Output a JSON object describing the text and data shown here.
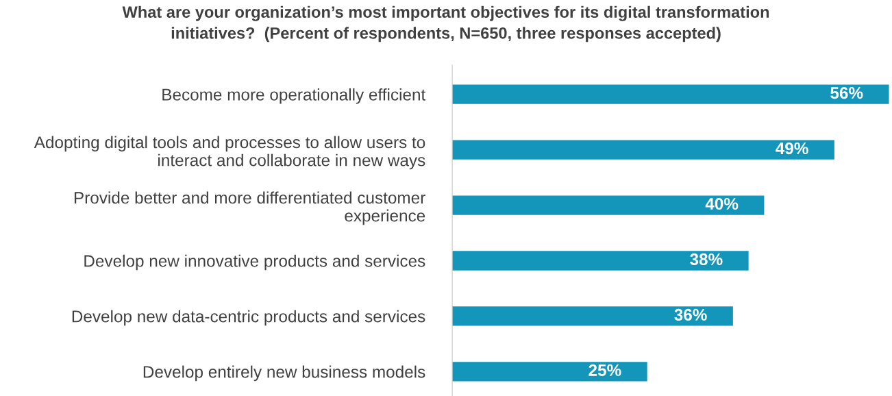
{
  "chart_data": {
    "type": "bar",
    "orientation": "horizontal",
    "title": "What are your organization’s most important objectives for its digital transformation\ninitiatives?  (Percent of respondents, N=650, three responses accepted)",
    "categories": [
      "Become more operationally efficient",
      "Adopting digital tools and processes to allow users to\ninteract and collaborate in new ways",
      "Provide better and more differentiated customer\nexperience",
      "Develop new innovative products and services",
      "Develop new data-centric products and services",
      "Develop entirely new business models"
    ],
    "values": [
      56,
      49,
      40,
      38,
      36,
      25
    ],
    "value_labels": [
      "56%",
      "49%",
      "40%",
      "38%",
      "36%",
      "25%"
    ],
    "color": "#1496bb",
    "grid": false,
    "legend": false,
    "tick_labels": "y"
  }
}
